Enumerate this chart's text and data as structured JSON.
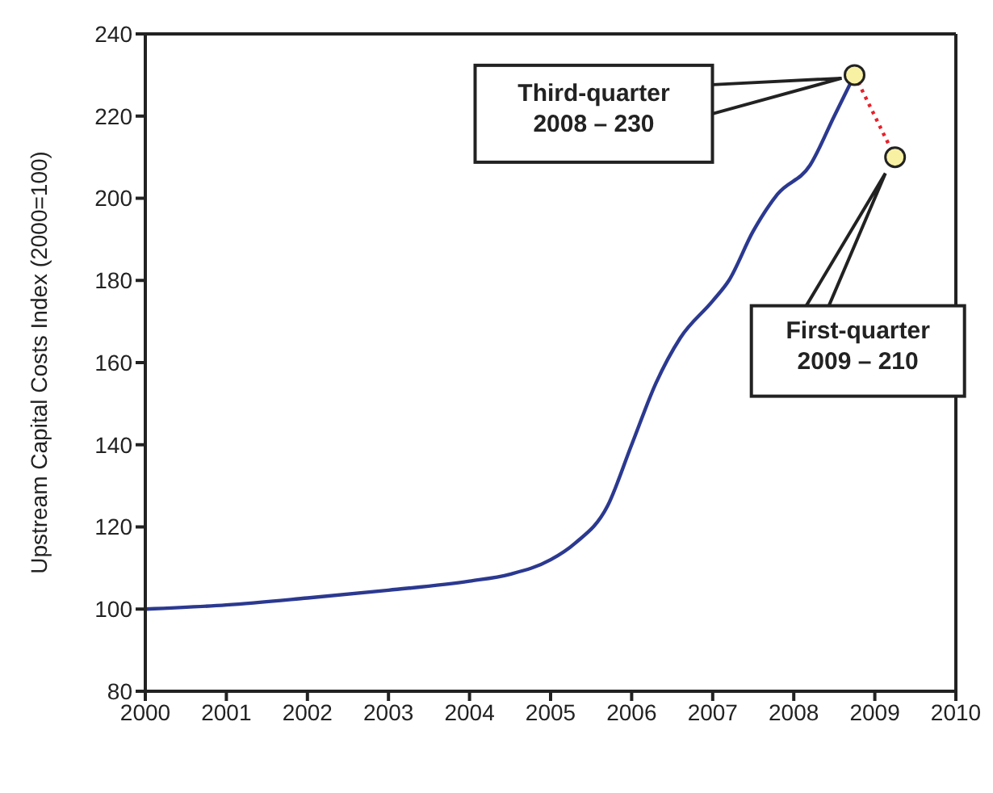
{
  "chart_data": {
    "type": "line",
    "ylabel": "Upstream Capital Costs Index (2000=100)",
    "xlim": [
      2000,
      2010
    ],
    "xticks": [
      2000,
      2001,
      2002,
      2003,
      2004,
      2005,
      2006,
      2007,
      2008,
      2009,
      2010
    ],
    "ylim": [
      80,
      240
    ],
    "yticks": [
      80,
      100,
      120,
      140,
      160,
      180,
      200,
      220,
      240
    ],
    "grid": false,
    "series": [
      {
        "color": "#2b3990",
        "marker": "none",
        "line_style": "solid",
        "x": [
          2000,
          2001,
          2002,
          2003,
          2004,
          2004.5,
          2005,
          2005.3,
          2005.7,
          2006,
          2006.3,
          2006.6,
          2007,
          2007.2,
          2007.5,
          2007.8,
          2008.2,
          2008.5,
          2008.75
        ],
        "values": [
          100,
          101,
          102.7,
          104.6,
          106.8,
          108.5,
          112,
          116,
          125,
          140,
          155,
          166,
          175,
          180,
          192,
          201,
          208,
          220,
          230
        ]
      },
      {
        "type": "line",
        "color": "#e8202a",
        "marker": "none",
        "line_style": "dotted",
        "x": [
          2008.75,
          2009.25
        ],
        "values": [
          230,
          210
        ]
      },
      {
        "type": "scatter",
        "color": "#f8f1a4",
        "marker": "circle",
        "x": [
          2008.75,
          2009.25
        ],
        "values": [
          230,
          210
        ]
      }
    ],
    "annotations": [
      "Third-quarter\n2008 – 230",
      "First-quarter\n2009 – 210"
    ]
  }
}
